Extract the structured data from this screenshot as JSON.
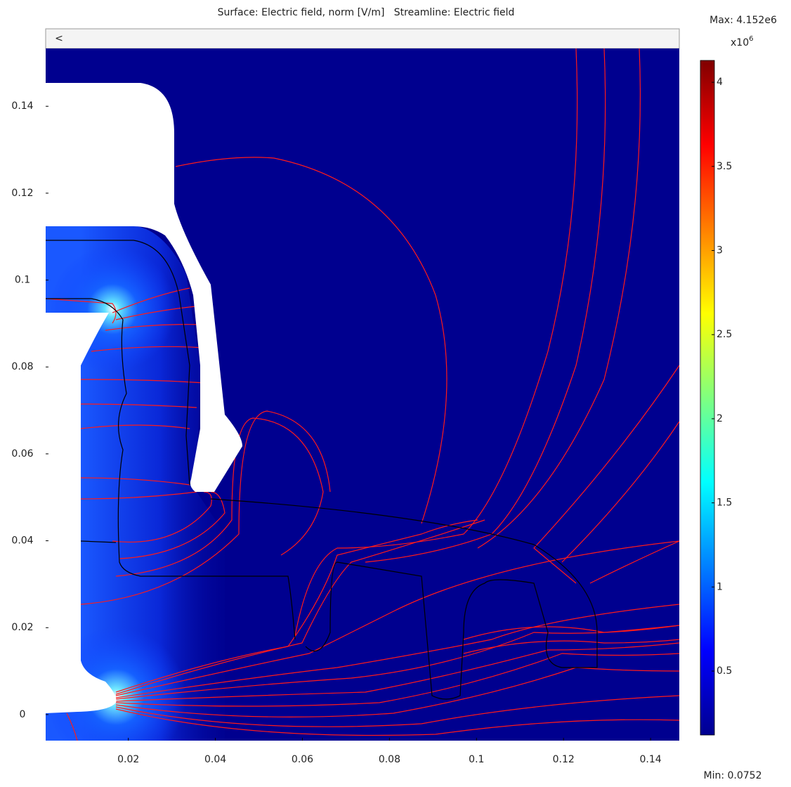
{
  "chart_data": {
    "type": "surface",
    "title": "Surface: Electric field, norm [V/m]   Streamline: Electric field",
    "scroll_arrow": "<",
    "xlim": [
      0.001,
      0.1466
    ],
    "ylim": [
      -0.006,
      0.1533
    ],
    "xticks": [
      0.02,
      0.04,
      0.06,
      0.08,
      0.1,
      0.12,
      0.14
    ],
    "yticks": [
      0,
      0.02,
      0.04,
      0.06,
      0.08,
      0.1,
      0.12,
      0.14
    ],
    "colorbar": {
      "colormap": "jet",
      "lim": [
        0.12,
        4.13
      ],
      "ticks": [
        0.5,
        1,
        1.5,
        2,
        2.5,
        3,
        3.5,
        4
      ],
      "multiplier": "x10",
      "exponent": "6",
      "max_label": "Max: 4.152e6",
      "min_label": "Min: 0.0752"
    }
  }
}
